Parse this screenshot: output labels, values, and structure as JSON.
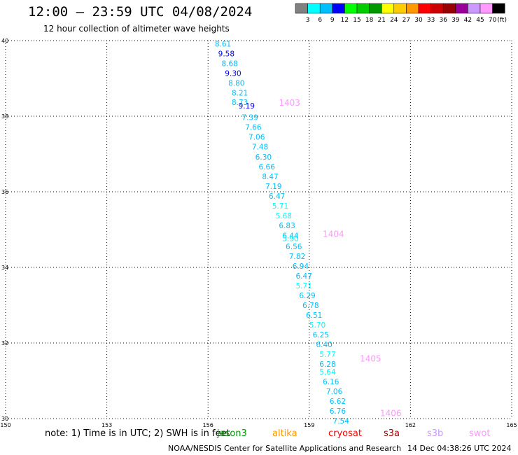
{
  "header": {
    "title": "12:00 – 23:59 UTC 04/08/2024",
    "subtitle": "12 hour collection of altimeter wave heights"
  },
  "colorbar": {
    "unit": "(ft)",
    "colors": [
      "#808080",
      "#00ffff",
      "#00bfff",
      "#0000ff",
      "#00ff00",
      "#00cc00",
      "#009900",
      "#ffff00",
      "#ffcc00",
      "#ff9900",
      "#ff0000",
      "#cc0000",
      "#990000",
      "#990099",
      "#cc99ff",
      "#ff99ff",
      "#000000"
    ],
    "labels": [
      "3",
      "6",
      "9",
      "12",
      "15",
      "18",
      "21",
      "24",
      "27",
      "30",
      "33",
      "36",
      "39",
      "42",
      "45",
      "70"
    ]
  },
  "chart_data": {
    "type": "scatter",
    "title": "12:00 – 23:59 UTC 04/08/2024",
    "subtitle": "12 hour collection of altimeter wave heights",
    "xlim": [
      150,
      165
    ],
    "ylim": [
      30,
      40
    ],
    "xticks": [
      "150",
      "153",
      "156",
      "159",
      "162",
      "165"
    ],
    "yticks": [
      "30",
      "32",
      "34",
      "36",
      "38",
      "40"
    ],
    "grid": true,
    "series": [
      {
        "color": "#00bfff",
        "points": [
          {
            "lon": 156.2,
            "lat": 39.92,
            "swh": "8.61",
            "color": "#00bfff"
          },
          {
            "lon": 156.3,
            "lat": 39.66,
            "swh": "9.58",
            "color": "#0000ff"
          },
          {
            "lon": 156.4,
            "lat": 39.4,
            "swh": "8.68",
            "color": "#00bfff"
          },
          {
            "lon": 156.5,
            "lat": 39.14,
            "swh": "9.30",
            "color": "#0000ff"
          },
          {
            "lon": 156.6,
            "lat": 38.88,
            "swh": "8.80",
            "color": "#00bfff"
          },
          {
            "lon": 156.7,
            "lat": 38.62,
            "swh": "8.21",
            "color": "#00bfff"
          },
          {
            "lon": 156.7,
            "lat": 38.37,
            "swh": "8.73",
            "color": "#00bfff"
          },
          {
            "lon": 156.9,
            "lat": 38.28,
            "swh": "9.19",
            "color": "#0000ff"
          },
          {
            "lon": 157.0,
            "lat": 37.97,
            "swh": "7.39",
            "color": "#00bfff"
          },
          {
            "lon": 157.1,
            "lat": 37.71,
            "swh": "7.66",
            "color": "#00bfff"
          },
          {
            "lon": 157.2,
            "lat": 37.45,
            "swh": "7.06",
            "color": "#00bfff"
          },
          {
            "lon": 157.3,
            "lat": 37.19,
            "swh": "7.48",
            "color": "#00bfff"
          },
          {
            "lon": 157.4,
            "lat": 36.93,
            "swh": "6.30",
            "color": "#00bfff"
          },
          {
            "lon": 157.5,
            "lat": 36.67,
            "swh": "6.66",
            "color": "#00bfff"
          },
          {
            "lon": 157.6,
            "lat": 36.41,
            "swh": "8.47",
            "color": "#00bfff"
          },
          {
            "lon": 157.7,
            "lat": 36.15,
            "swh": "7.19",
            "color": "#00bfff"
          },
          {
            "lon": 157.8,
            "lat": 35.89,
            "swh": "6.47",
            "color": "#00bfff"
          },
          {
            "lon": 157.9,
            "lat": 35.63,
            "swh": "5.71",
            "color": "#00ffff"
          },
          {
            "lon": 158.0,
            "lat": 35.37,
            "swh": "5.68",
            "color": "#00ffff"
          },
          {
            "lon": 158.1,
            "lat": 35.11,
            "swh": "6.83",
            "color": "#00bfff"
          },
          {
            "lon": 158.2,
            "lat": 34.84,
            "swh": "6.44",
            "color": "#00bfff"
          },
          {
            "lon": 158.2,
            "lat": 34.77,
            "swh": "5.90",
            "color": "#00ffff"
          },
          {
            "lon": 158.3,
            "lat": 34.56,
            "swh": "6.56",
            "color": "#00bfff"
          },
          {
            "lon": 158.4,
            "lat": 34.3,
            "swh": "7.82",
            "color": "#00bfff"
          },
          {
            "lon": 158.5,
            "lat": 34.04,
            "swh": "6.94",
            "color": "#00bfff"
          },
          {
            "lon": 158.6,
            "lat": 33.78,
            "swh": "6.47",
            "color": "#00bfff"
          },
          {
            "lon": 158.6,
            "lat": 33.52,
            "swh": "5.71",
            "color": "#00ffff"
          },
          {
            "lon": 158.7,
            "lat": 33.26,
            "swh": "6.29",
            "color": "#00bfff"
          },
          {
            "lon": 158.8,
            "lat": 33.0,
            "swh": "6.78",
            "color": "#00bfff"
          },
          {
            "lon": 158.9,
            "lat": 32.74,
            "swh": "6.51",
            "color": "#00bfff"
          },
          {
            "lon": 159.0,
            "lat": 32.48,
            "swh": "5.70",
            "color": "#00ffff"
          },
          {
            "lon": 159.1,
            "lat": 32.22,
            "swh": "6.25",
            "color": "#00bfff"
          },
          {
            "lon": 159.2,
            "lat": 31.96,
            "swh": "6.40",
            "color": "#00bfff"
          },
          {
            "lon": 159.3,
            "lat": 31.7,
            "swh": "5.77",
            "color": "#00ffff"
          },
          {
            "lon": 159.3,
            "lat": 31.44,
            "swh": "6.28",
            "color": "#00bfff"
          },
          {
            "lon": 159.3,
            "lat": 31.24,
            "swh": "5.64",
            "color": "#00ffff"
          },
          {
            "lon": 159.4,
            "lat": 30.98,
            "swh": "6.16",
            "color": "#00bfff"
          },
          {
            "lon": 159.5,
            "lat": 30.72,
            "swh": "7.06",
            "color": "#00bfff"
          },
          {
            "lon": 159.6,
            "lat": 30.46,
            "swh": "6.62",
            "color": "#00bfff"
          },
          {
            "lon": 159.6,
            "lat": 30.2,
            "swh": "6.76",
            "color": "#00bfff"
          },
          {
            "lon": 159.7,
            "lat": 29.94,
            "swh": "7.54",
            "color": "#00bfff"
          }
        ]
      }
    ],
    "annotations": [
      {
        "text": "1403",
        "lon": 158.1,
        "lat": 38.35,
        "color": "#ff99ff"
      },
      {
        "text": "1404",
        "lon": 159.4,
        "lat": 34.88,
        "color": "#ff99ff"
      },
      {
        "text": "1405",
        "lon": 160.5,
        "lat": 31.58,
        "color": "#ff99ff"
      },
      {
        "text": "1406",
        "lon": 161.1,
        "lat": 30.14,
        "color": "#ff99ff"
      }
    ]
  },
  "footer": {
    "note": "note:  1) Time is in UTC; 2) SWH is in feet",
    "missions": [
      {
        "name": "jason3",
        "color": "#009900"
      },
      {
        "name": "altika",
        "color": "#ff9900"
      },
      {
        "name": "cryosat",
        "color": "#ff0000"
      },
      {
        "name": "s3a",
        "color": "#990000"
      },
      {
        "name": "s3b",
        "color": "#cc99ff"
      },
      {
        "name": "swot",
        "color": "#ff99ff"
      }
    ],
    "credit": "NOAA/NESDIS Center for Satellite Applications and Research",
    "timestamp": "14 Dec 04:38:26 UTC 2024"
  }
}
